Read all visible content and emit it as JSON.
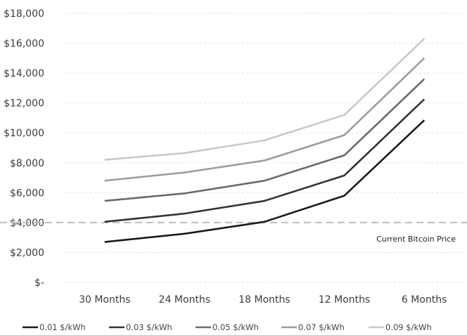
{
  "chart_data": {
    "type": "line",
    "categories": [
      "30 Months",
      "24 Months",
      "18 Months",
      "12 Months",
      "6 Months"
    ],
    "series": [
      {
        "name": "0.01 $/kWh",
        "color": "#1a1a1a",
        "values": [
          2700,
          3250,
          4050,
          5800,
          10850
        ]
      },
      {
        "name": "0.03 $/kWh",
        "color": "#333333",
        "values": [
          4050,
          4600,
          5450,
          7150,
          12250
        ]
      },
      {
        "name": "0.05 $/kWh",
        "color": "#6a6a6a",
        "values": [
          5450,
          5950,
          6800,
          8500,
          13600
        ]
      },
      {
        "name": "0.07 $/kWh",
        "color": "#9c9c9c",
        "values": [
          6800,
          7350,
          8150,
          9850,
          15000
        ]
      },
      {
        "name": "0.09 $/kWh",
        "color": "#c8c8c8",
        "values": [
          8200,
          8650,
          9500,
          11200,
          16300
        ]
      }
    ],
    "y_ticks": [
      {
        "value": 0,
        "label": "$-"
      },
      {
        "value": 2000,
        "label": "$2,000"
      },
      {
        "value": 4000,
        "label": "$4,000"
      },
      {
        "value": 6000,
        "label": "$6,000"
      },
      {
        "value": 8000,
        "label": "$8,000"
      },
      {
        "value": 10000,
        "label": "$10,000"
      },
      {
        "value": 12000,
        "label": "$12,000"
      },
      {
        "value": 14000,
        "label": "$14,000"
      },
      {
        "value": 16000,
        "label": "$16,000"
      },
      {
        "value": 18000,
        "label": "$18,000"
      }
    ],
    "ylim": [
      0,
      18000
    ],
    "reference_line": {
      "value": 4000,
      "label": "Current Bitcoin Price",
      "color": "#bdbdbd"
    },
    "grid": true,
    "gridline_color": "#e2e2e2",
    "legend_position": "bottom"
  }
}
